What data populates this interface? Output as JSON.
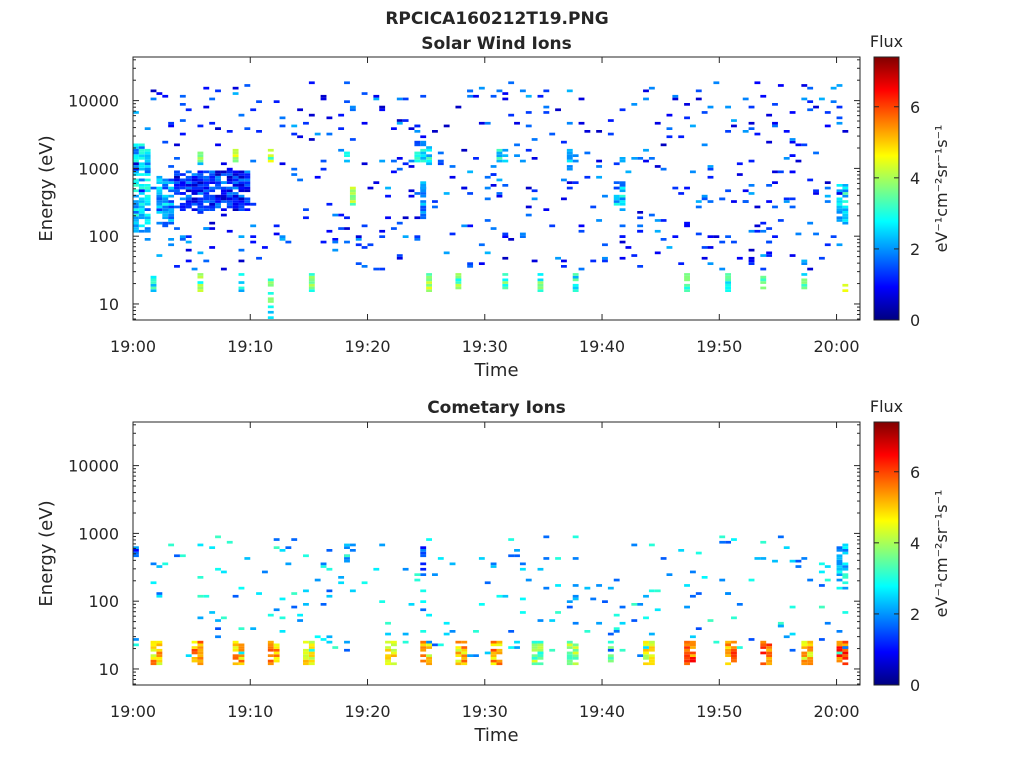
{
  "figure": {
    "filename_title": "RPCICA160212T19.PNG"
  },
  "colorbar": {
    "title": "Flux",
    "unit_label": "eV⁻¹cm⁻²sr⁻¹s⁻¹",
    "ticks": [
      "0",
      "2",
      "4",
      "6"
    ],
    "range": [
      0,
      7.4
    ],
    "colormap": "jet"
  },
  "chart_data": [
    {
      "type": "heatmap",
      "title": "Solar Wind Ions",
      "xlabel": "Time",
      "ylabel": "Energy (eV)",
      "x_ticks": [
        "19:00",
        "19:10",
        "19:20",
        "19:30",
        "19:40",
        "19:50",
        "20:00"
      ],
      "y_ticks": [
        "10",
        "100",
        "1000",
        "10000"
      ],
      "y_scale": "log",
      "ylim": [
        5.8,
        44000
      ],
      "xlim_min": [
        0,
        62
      ],
      "clusters": [
        {
          "t": [
            0.0,
            1.5
          ],
          "e": [
            120,
            2200
          ],
          "v": 2.4
        },
        {
          "t": [
            2.0,
            3.5
          ],
          "e": [
            150,
            700
          ],
          "v": 2.1
        },
        {
          "t": [
            3.5,
            10.0
          ],
          "e": [
            250,
            900
          ],
          "v": 1.2
        },
        {
          "t": [
            5.5,
            6.0
          ],
          "e": [
            1300,
            1700
          ],
          "v": 4.0
        },
        {
          "t": [
            8.5,
            9.0
          ],
          "e": [
            1300,
            1800
          ],
          "v": 4.3
        },
        {
          "t": [
            11.5,
            12.0
          ],
          "e": [
            1300,
            1800
          ],
          "v": 3.8
        },
        {
          "t": [
            18.0,
            18.5
          ],
          "e": [
            1300,
            1700
          ],
          "v": 2.6
        },
        {
          "t": [
            18.5,
            19.0
          ],
          "e": [
            300,
            500
          ],
          "v": 3.8
        },
        {
          "t": [
            24.0,
            25.5
          ],
          "e": [
            1300,
            1900
          ],
          "v": 2.8
        },
        {
          "t": [
            24.5,
            25.0
          ],
          "e": [
            180,
            600
          ],
          "v": 1.8
        },
        {
          "t": [
            31.0,
            32.0
          ],
          "e": [
            1300,
            1800
          ],
          "v": 2.7
        },
        {
          "t": [
            37.0,
            38.0
          ],
          "e": [
            1300,
            1800
          ],
          "v": 2.5
        },
        {
          "t": [
            41.0,
            42.0
          ],
          "e": [
            300,
            600
          ],
          "v": 2.4
        },
        {
          "t": [
            60.0,
            61.0
          ],
          "e": [
            150,
            550
          ],
          "v": 2.6
        },
        {
          "t": [
            1.5,
            2.0
          ],
          "e": [
            16,
            28
          ],
          "v": 3.0
        },
        {
          "t": [
            5.5,
            6.0
          ],
          "e": [
            16,
            28
          ],
          "v": 3.5
        },
        {
          "t": [
            9.0,
            9.5
          ],
          "e": [
            16,
            28
          ],
          "v": 2.9
        },
        {
          "t": [
            11.5,
            12.0
          ],
          "e": [
            6,
            28
          ],
          "v": 3.1
        },
        {
          "t": [
            15.0,
            15.5
          ],
          "e": [
            16,
            28
          ],
          "v": 3.3
        },
        {
          "t": [
            25.0,
            25.5
          ],
          "e": [
            16,
            28
          ],
          "v": 3.7
        },
        {
          "t": [
            27.5,
            28.0
          ],
          "e": [
            16,
            28
          ],
          "v": 3.5
        },
        {
          "t": [
            31.5,
            32.0
          ],
          "e": [
            16,
            28
          ],
          "v": 3.4
        },
        {
          "t": [
            34.5,
            35.0
          ],
          "e": [
            16,
            28
          ],
          "v": 3.2
        },
        {
          "t": [
            37.5,
            38.0
          ],
          "e": [
            16,
            28
          ],
          "v": 3.0
        },
        {
          "t": [
            47.0,
            47.5
          ],
          "e": [
            16,
            28
          ],
          "v": 3.6
        },
        {
          "t": [
            50.5,
            51.0
          ],
          "e": [
            16,
            28
          ],
          "v": 3.1
        },
        {
          "t": [
            53.5,
            54.0
          ],
          "e": [
            16,
            28
          ],
          "v": 3.3
        },
        {
          "t": [
            57.0,
            57.5
          ],
          "e": [
            16,
            28
          ],
          "v": 3.0
        },
        {
          "t": [
            60.5,
            61.0
          ],
          "e": [
            16,
            28
          ],
          "v": 4.6
        }
      ]
    },
    {
      "type": "heatmap",
      "title": "Cometary Ions",
      "xlabel": "Time",
      "ylabel": "Energy (eV)",
      "x_ticks": [
        "19:00",
        "19:10",
        "19:20",
        "19:30",
        "19:40",
        "19:50",
        "20:00"
      ],
      "y_ticks": [
        "10",
        "100",
        "1000",
        "10000"
      ],
      "y_scale": "log",
      "ylim": [
        5.8,
        44000
      ],
      "xlim_min": [
        0,
        62
      ],
      "clusters": [
        {
          "t": [
            1.5,
            2.5
          ],
          "e": [
            12,
            25
          ],
          "v": 5.0
        },
        {
          "t": [
            5.0,
            6.0
          ],
          "e": [
            12,
            25
          ],
          "v": 5.3
        },
        {
          "t": [
            8.5,
            9.5
          ],
          "e": [
            12,
            25
          ],
          "v": 5.0
        },
        {
          "t": [
            11.5,
            12.5
          ],
          "e": [
            12,
            25
          ],
          "v": 5.1
        },
        {
          "t": [
            14.5,
            15.5
          ],
          "e": [
            12,
            25
          ],
          "v": 4.8
        },
        {
          "t": [
            21.5,
            22.5
          ],
          "e": [
            12,
            25
          ],
          "v": 4.9
        },
        {
          "t": [
            24.5,
            25.5
          ],
          "e": [
            12,
            25
          ],
          "v": 4.9
        },
        {
          "t": [
            27.5,
            28.5
          ],
          "e": [
            12,
            25
          ],
          "v": 5.0
        },
        {
          "t": [
            30.5,
            31.5
          ],
          "e": [
            12,
            25
          ],
          "v": 5.2
        },
        {
          "t": [
            34.0,
            35.0
          ],
          "e": [
            12,
            25
          ],
          "v": 3.7
        },
        {
          "t": [
            37.0,
            38.0
          ],
          "e": [
            12,
            25
          ],
          "v": 3.6
        },
        {
          "t": [
            40.5,
            41.0
          ],
          "e": [
            12,
            25
          ],
          "v": 3.2
        },
        {
          "t": [
            43.5,
            44.5
          ],
          "e": [
            12,
            25
          ],
          "v": 4.6
        },
        {
          "t": [
            47.0,
            48.0
          ],
          "e": [
            12,
            25
          ],
          "v": 5.8
        },
        {
          "t": [
            50.5,
            51.5
          ],
          "e": [
            12,
            25
          ],
          "v": 5.5
        },
        {
          "t": [
            53.5,
            54.5
          ],
          "e": [
            12,
            25
          ],
          "v": 5.6
        },
        {
          "t": [
            57.0,
            58.0
          ],
          "e": [
            12,
            25
          ],
          "v": 5.0
        },
        {
          "t": [
            60.0,
            61.0
          ],
          "e": [
            12,
            25
          ],
          "v": 5.8
        },
        {
          "t": [
            0.0,
            0.5
          ],
          "e": [
            450,
            650
          ],
          "v": 1.3
        },
        {
          "t": [
            18.0,
            18.5
          ],
          "e": [
            350,
            650
          ],
          "v": 2.2
        },
        {
          "t": [
            24.5,
            25.0
          ],
          "e": [
            250,
            600
          ],
          "v": 1.6
        },
        {
          "t": [
            60.0,
            61.0
          ],
          "e": [
            150,
            700
          ],
          "v": 2.4
        }
      ]
    }
  ]
}
